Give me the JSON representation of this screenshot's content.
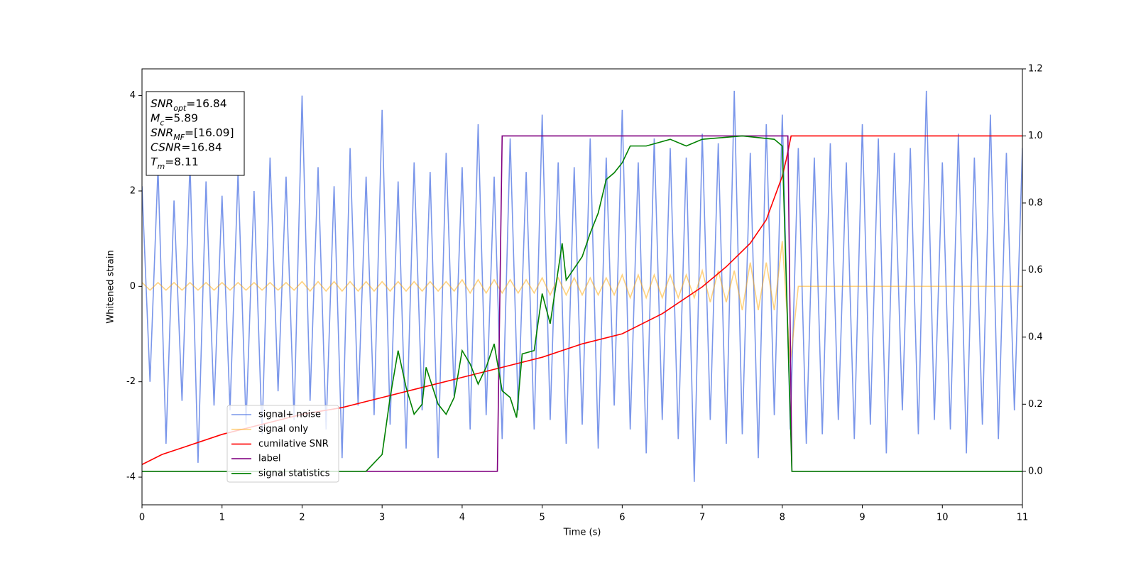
{
  "chart_data": {
    "type": "line",
    "x_label": "Time (s)",
    "y_label": "Whitened strain",
    "xlim": [
      0,
      11
    ],
    "ylim": [
      -4.58,
      4.56
    ],
    "y2lim": [
      -0.1,
      1.2
    ],
    "xticks": [
      0,
      1,
      2,
      3,
      4,
      5,
      6,
      7,
      8,
      9,
      10,
      11
    ],
    "yticks": [
      -4,
      -2,
      0,
      2,
      4
    ],
    "y2ticks": [
      {
        "value": 0,
        "label": "0.0"
      },
      0.2,
      0.4,
      0.6,
      0.8,
      {
        "value": 1,
        "label": "1.0"
      },
      1.2
    ],
    "annotation_lines": [
      {
        "base": "SNR",
        "sub": "opt",
        "rest": "=16.84"
      },
      {
        "base": "M",
        "sub": "c",
        "rest": "=5.89"
      },
      {
        "base": "SNR",
        "sub": "MF",
        "rest": "=[16.09]"
      },
      {
        "base": "CSNR",
        "rest": "=16.84"
      },
      {
        "base": "T",
        "sub": "m",
        "rest": "=8.11"
      }
    ],
    "x": [
      0,
      0.1,
      0.2,
      0.3,
      0.4,
      0.5,
      0.6,
      0.7,
      0.8,
      0.9,
      1,
      1.1,
      1.2,
      1.3,
      1.4,
      1.5,
      1.6,
      1.7,
      1.8,
      1.9,
      2,
      2.1,
      2.2,
      2.3,
      2.4,
      2.5,
      2.6,
      2.7,
      2.8,
      2.9,
      3,
      3.1,
      3.2,
      3.3,
      3.4,
      3.5,
      3.6,
      3.7,
      3.8,
      3.9,
      4,
      4.1,
      4.2,
      4.3,
      4.4,
      4.5,
      4.6,
      4.7,
      4.8,
      4.9,
      5,
      5.1,
      5.2,
      5.3,
      5.4,
      5.5,
      5.6,
      5.7,
      5.8,
      5.9,
      6,
      6.1,
      6.2,
      6.3,
      6.4,
      6.5,
      6.6,
      6.7,
      6.8,
      6.9,
      7,
      7.1,
      7.2,
      7.3,
      7.4,
      7.5,
      7.6,
      7.7,
      7.8,
      7.9,
      8,
      8.1,
      8.2,
      8.3,
      8.4,
      8.5,
      8.6,
      8.7,
      8.8,
      8.9,
      9,
      9.1,
      9.2,
      9.3,
      9.4,
      9.5,
      9.6,
      9.7,
      9.8,
      9.9,
      10,
      10.1,
      10.2,
      10.3,
      10.4,
      10.5,
      10.6,
      10.7,
      10.8,
      10.9,
      11
    ],
    "series": [
      {
        "name": "signal+ noise",
        "color": "#4169e1",
        "opacity": 0.7,
        "values": [
          2.1,
          -2.0,
          2.5,
          -3.3,
          1.8,
          -2.4,
          2.6,
          -3.7,
          2.2,
          -2.5,
          1.9,
          -2.6,
          2.4,
          -2.9,
          2.0,
          -3.1,
          2.7,
          -2.2,
          2.3,
          -2.8,
          4.0,
          -2.4,
          2.5,
          -3.0,
          2.1,
          -3.6,
          2.9,
          -2.5,
          2.3,
          -2.7,
          3.7,
          -2.9,
          2.2,
          -3.4,
          2.6,
          -2.6,
          2.4,
          -3.6,
          2.8,
          -2.3,
          2.5,
          -3.0,
          3.4,
          -2.7,
          2.3,
          -3.2,
          3.1,
          -2.6,
          2.4,
          -3.0,
          3.6,
          -2.8,
          2.6,
          -3.3,
          2.5,
          -2.9,
          3.1,
          -3.4,
          2.7,
          -2.5,
          3.7,
          -3.0,
          2.6,
          -3.5,
          3.1,
          -2.8,
          2.9,
          -3.2,
          2.7,
          -4.1,
          3.2,
          -2.8,
          3.0,
          -3.3,
          4.1,
          -3.1,
          2.8,
          -3.6,
          3.4,
          -2.7,
          3.6,
          -3.0,
          2.9,
          -3.3,
          2.7,
          -3.1,
          3.0,
          -2.8,
          2.6,
          -3.2,
          3.4,
          -2.9,
          3.1,
          -3.5,
          2.8,
          -2.6,
          2.9,
          -3.1,
          4.1,
          -2.8,
          2.6,
          -3.0,
          3.2,
          -3.5,
          2.7,
          -2.9,
          3.6,
          -3.2,
          2.8,
          -2.6,
          2.9
        ]
      },
      {
        "name": "signal only",
        "color": "#ffa500",
        "opacity": 0.5,
        "values": [
          0.08,
          -0.08,
          0.08,
          -0.08,
          0.08,
          -0.08,
          0.08,
          -0.08,
          0.08,
          -0.08,
          0.08,
          -0.08,
          0.08,
          -0.08,
          0.08,
          -0.08,
          0.08,
          -0.08,
          0.08,
          -0.08,
          0.1,
          -0.1,
          0.1,
          -0.1,
          0.1,
          -0.1,
          0.1,
          -0.1,
          0.1,
          -0.1,
          0.1,
          -0.1,
          0.1,
          -0.1,
          0.1,
          -0.1,
          0.1,
          -0.1,
          0.1,
          -0.1,
          0.14,
          -0.14,
          0.14,
          -0.14,
          0.14,
          -0.14,
          0.14,
          -0.14,
          0.14,
          -0.14,
          0.18,
          -0.18,
          0.18,
          -0.18,
          0.18,
          -0.18,
          0.18,
          -0.18,
          0.18,
          -0.18,
          0.24,
          -0.24,
          0.24,
          -0.24,
          0.24,
          -0.24,
          0.24,
          -0.24,
          0.24,
          -0.24,
          0.33,
          -0.33,
          0.33,
          -0.33,
          0.33,
          -0.5,
          0.5,
          -0.5,
          0.5,
          -0.5,
          0.95,
          -1.6,
          0,
          0,
          0,
          0,
          0,
          0,
          0,
          0,
          0,
          0,
          0,
          0,
          0,
          0,
          0,
          0,
          0,
          0,
          0,
          0,
          0,
          0,
          0,
          0,
          0,
          0,
          0,
          0,
          0
        ]
      },
      {
        "name": "cumilative SNR",
        "color": "#ff0000",
        "axis": "y2",
        "x": [
          0,
          0.25,
          0.5,
          1,
          1.5,
          2,
          2.5,
          3,
          3.5,
          4,
          4.5,
          5,
          5.5,
          6,
          6.5,
          7,
          7.3,
          7.6,
          7.8,
          8,
          8.05,
          8.11,
          11
        ],
        "values": [
          0.02,
          0.05,
          0.07,
          0.11,
          0.14,
          0.17,
          0.19,
          0.22,
          0.25,
          0.28,
          0.31,
          0.34,
          0.38,
          0.41,
          0.47,
          0.55,
          0.61,
          0.68,
          0.75,
          0.88,
          0.93,
          1.0,
          1.0
        ]
      },
      {
        "name": "label",
        "color": "#800080",
        "axis": "y2",
        "x": [
          0,
          4.44,
          4.5,
          8.07,
          8.12,
          11
        ],
        "values": [
          0,
          0,
          1,
          1,
          0,
          0
        ]
      },
      {
        "name": "signal statistics",
        "color": "#008000",
        "axis": "y2",
        "x": [
          0,
          2.8,
          3.0,
          3.1,
          3.2,
          3.3,
          3.4,
          3.5,
          3.55,
          3.7,
          3.8,
          3.9,
          4.0,
          4.1,
          4.2,
          4.3,
          4.4,
          4.5,
          4.6,
          4.68,
          4.75,
          4.9,
          5.0,
          5.1,
          5.25,
          5.3,
          5.5,
          5.6,
          5.7,
          5.8,
          5.9,
          6.0,
          6.1,
          6.3,
          6.6,
          6.8,
          7.0,
          7.5,
          7.9,
          8.0,
          8.12,
          11
        ],
        "values": [
          0,
          0,
          0.05,
          0.22,
          0.36,
          0.25,
          0.17,
          0.2,
          0.31,
          0.2,
          0.17,
          0.22,
          0.36,
          0.32,
          0.26,
          0.31,
          0.38,
          0.24,
          0.22,
          0.16,
          0.35,
          0.36,
          0.53,
          0.44,
          0.68,
          0.57,
          0.64,
          0.71,
          0.77,
          0.87,
          0.89,
          0.92,
          0.97,
          0.97,
          0.99,
          0.97,
          0.99,
          1.0,
          0.99,
          0.97,
          0,
          0
        ]
      }
    ]
  }
}
